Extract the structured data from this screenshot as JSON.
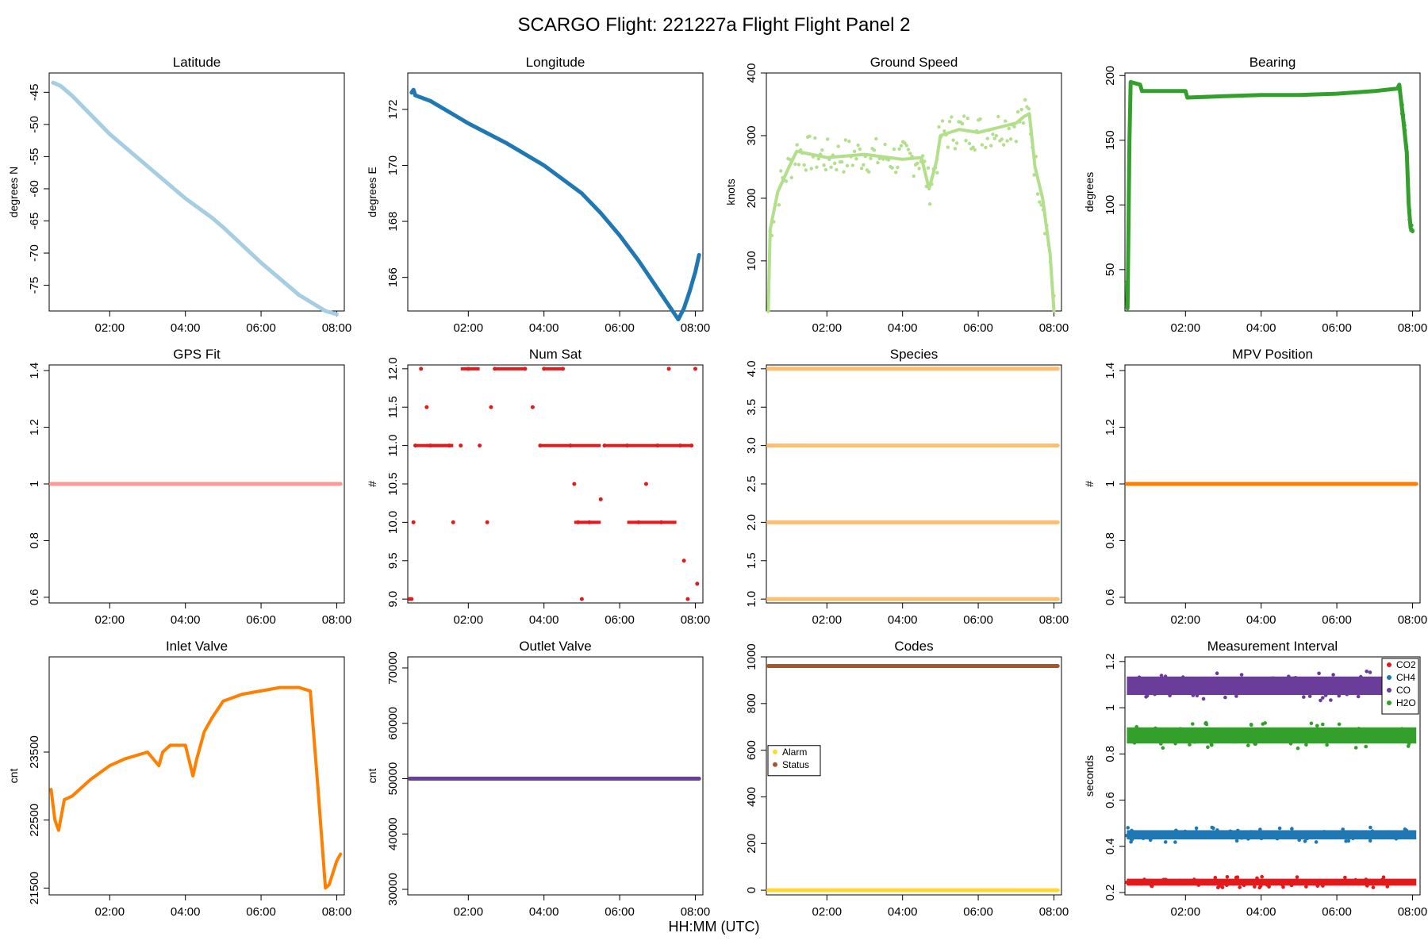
{
  "page": {
    "title": "SCARGO Flight: 221227a  Flight Flight  Panel 2",
    "xlabel": "HH:MM (UTC)"
  },
  "chart_data": [
    {
      "id": "latitude",
      "type": "scatter",
      "title": "Latitude",
      "ylabel": "degrees N",
      "color": "#a6cee3",
      "xlim": [
        0.4,
        8.2
      ],
      "ylim": [
        -79,
        -42
      ],
      "yticks": [
        -45,
        -50,
        -55,
        -60,
        -65,
        -70,
        -75
      ],
      "xticks": [
        "02:00",
        "04:00",
        "06:00",
        "08:00"
      ],
      "points": [
        [
          0.5,
          -43.5
        ],
        [
          0.7,
          -44
        ],
        [
          1.0,
          -45.5
        ],
        [
          2.0,
          -51.5
        ],
        [
          3.0,
          -56.5
        ],
        [
          4.0,
          -61.5
        ],
        [
          4.7,
          -64.5
        ],
        [
          5.0,
          -66
        ],
        [
          6.0,
          -71.5
        ],
        [
          7.0,
          -76.5
        ],
        [
          7.7,
          -79
        ],
        [
          8.0,
          -79.5
        ]
      ]
    },
    {
      "id": "longitude",
      "type": "scatter",
      "title": "Longitude",
      "ylabel": "degrees E",
      "color": "#1f78b4",
      "xlim": [
        0.4,
        8.2
      ],
      "ylim": [
        164.8,
        173.3
      ],
      "yticks": [
        166,
        168,
        170,
        172
      ],
      "xticks": [
        "02:00",
        "04:00",
        "06:00",
        "08:00"
      ],
      "points": [
        [
          0.5,
          172.6
        ],
        [
          0.55,
          172.7
        ],
        [
          0.6,
          172.5
        ],
        [
          1.0,
          172.3
        ],
        [
          1.5,
          171.9
        ],
        [
          2.0,
          171.5
        ],
        [
          3.0,
          170.8
        ],
        [
          4.0,
          170.0
        ],
        [
          5.0,
          169.0
        ],
        [
          5.5,
          168.3
        ],
        [
          6.0,
          167.5
        ],
        [
          6.5,
          166.6
        ],
        [
          7.0,
          165.6
        ],
        [
          7.4,
          164.8
        ],
        [
          7.55,
          164.5
        ],
        [
          7.7,
          164.9
        ],
        [
          7.85,
          165.5
        ],
        [
          8.0,
          166.2
        ],
        [
          8.1,
          166.8
        ]
      ]
    },
    {
      "id": "ground-speed",
      "type": "scatter",
      "title": "Ground Speed",
      "ylabel": "knots",
      "color": "#b2df8a",
      "xlim": [
        0.4,
        8.2
      ],
      "ylim": [
        20,
        400
      ],
      "yticks": [
        100,
        200,
        300,
        400
      ],
      "xticks": [
        "02:00",
        "04:00",
        "06:00",
        "08:00"
      ],
      "points": [
        [
          0.45,
          20
        ],
        [
          0.5,
          150
        ],
        [
          0.7,
          210
        ],
        [
          1.0,
          250
        ],
        [
          1.2,
          275
        ],
        [
          2.0,
          265
        ],
        [
          3.0,
          270
        ],
        [
          4.0,
          262
        ],
        [
          4.5,
          265
        ],
        [
          4.7,
          215
        ],
        [
          4.9,
          260
        ],
        [
          5.0,
          300
        ],
        [
          5.5,
          310
        ],
        [
          6.0,
          305
        ],
        [
          7.0,
          320
        ],
        [
          7.2,
          330
        ],
        [
          7.35,
          335
        ],
        [
          7.5,
          250
        ],
        [
          7.7,
          200
        ],
        [
          7.9,
          110
        ],
        [
          8.0,
          20
        ]
      ]
    },
    {
      "id": "bearing",
      "type": "scatter",
      "title": "Bearing",
      "ylabel": "degrees",
      "color": "#33a02c",
      "xlim": [
        0.4,
        8.2
      ],
      "ylim": [
        18,
        202
      ],
      "yticks": [
        50,
        100,
        150,
        200
      ],
      "xticks": [
        "02:00",
        "04:00",
        "06:00",
        "08:00"
      ],
      "points": [
        [
          0.45,
          40
        ],
        [
          0.47,
          20
        ],
        [
          0.52,
          150
        ],
        [
          0.55,
          195
        ],
        [
          0.8,
          193
        ],
        [
          0.85,
          188
        ],
        [
          1.5,
          188
        ],
        [
          2.0,
          188
        ],
        [
          2.05,
          183
        ],
        [
          3.0,
          184
        ],
        [
          4.0,
          185
        ],
        [
          5.0,
          185
        ],
        [
          6.0,
          186
        ],
        [
          7.0,
          188
        ],
        [
          7.6,
          190
        ],
        [
          7.65,
          193
        ],
        [
          7.7,
          180
        ],
        [
          7.75,
          168
        ],
        [
          7.85,
          140
        ],
        [
          7.9,
          100
        ],
        [
          7.95,
          82
        ],
        [
          8.0,
          80
        ]
      ]
    },
    {
      "id": "gps-fit",
      "type": "scatter",
      "title": "GPS Fit",
      "ylabel": "",
      "color": "#fb9a99",
      "xlim": [
        0.4,
        8.2
      ],
      "ylim": [
        0.58,
        1.42
      ],
      "yticks": [
        0.6,
        0.8,
        1.0,
        1.2,
        1.4
      ],
      "xticks": [
        "02:00",
        "04:00",
        "06:00",
        "08:00"
      ],
      "points": [
        [
          0.45,
          1.0
        ],
        [
          8.1,
          1.0
        ]
      ]
    },
    {
      "id": "num-sat",
      "type": "scatter",
      "title": "Num Sat",
      "ylabel": "#",
      "color": "#e31a1c",
      "xlim": [
        0.4,
        8.2
      ],
      "ylim": [
        8.95,
        12.05
      ],
      "yticks": [
        9.0,
        9.5,
        10.0,
        10.5,
        11.0,
        11.5,
        12.0
      ],
      "xticks": [
        "02:00",
        "04:00",
        "06:00",
        "08:00"
      ],
      "points": [
        [
          0.45,
          9.0
        ],
        [
          0.5,
          9.0
        ],
        [
          0.55,
          10.0
        ],
        [
          0.6,
          11.0
        ],
        [
          0.75,
          12.0
        ],
        [
          0.9,
          11.5
        ],
        [
          1.0,
          11.0
        ],
        [
          1.5,
          11.0
        ],
        [
          1.6,
          10.0
        ],
        [
          1.8,
          11.0
        ],
        [
          2.0,
          12.0
        ],
        [
          2.3,
          11.0
        ],
        [
          2.5,
          10.0
        ],
        [
          2.6,
          11.5
        ],
        [
          2.7,
          12.0
        ],
        [
          3.5,
          12.0
        ],
        [
          3.7,
          11.5
        ],
        [
          3.9,
          11.0
        ],
        [
          4.0,
          12.0
        ],
        [
          4.5,
          12.0
        ],
        [
          4.7,
          11.0
        ],
        [
          4.8,
          10.5
        ],
        [
          4.9,
          10.0
        ],
        [
          5.0,
          9.0
        ],
        [
          5.2,
          10.0
        ],
        [
          5.5,
          10.3
        ],
        [
          5.6,
          11.0
        ],
        [
          6.2,
          11.0
        ],
        [
          6.5,
          10.0
        ],
        [
          6.7,
          10.5
        ],
        [
          7.0,
          11.0
        ],
        [
          7.1,
          10.0
        ],
        [
          7.3,
          12.0
        ],
        [
          7.6,
          11.0
        ],
        [
          7.7,
          9.5
        ],
        [
          7.8,
          9.0
        ],
        [
          7.9,
          11.0
        ],
        [
          8.0,
          12.0
        ],
        [
          8.05,
          9.2
        ]
      ]
    },
    {
      "id": "species",
      "type": "scatter",
      "title": "Species",
      "ylabel": "",
      "color": "#fdbf6f",
      "xlim": [
        0.4,
        8.2
      ],
      "ylim": [
        0.95,
        4.05
      ],
      "yticks": [
        1.0,
        1.5,
        2.0,
        2.5,
        3.0,
        3.5,
        4.0
      ],
      "xticks": [
        "02:00",
        "04:00",
        "06:00",
        "08:00"
      ],
      "series": [
        {
          "name": "1",
          "points": [
            [
              0.45,
              1.0
            ],
            [
              8.1,
              1.0
            ]
          ]
        },
        {
          "name": "2",
          "points": [
            [
              0.45,
              2.0
            ],
            [
              8.1,
              2.0
            ]
          ]
        },
        {
          "name": "3",
          "points": [
            [
              0.45,
              3.0
            ],
            [
              8.1,
              3.0
            ]
          ]
        },
        {
          "name": "4",
          "points": [
            [
              0.45,
              4.0
            ],
            [
              8.1,
              4.0
            ]
          ]
        }
      ]
    },
    {
      "id": "mpv-position",
      "type": "scatter",
      "title": "MPV Position",
      "ylabel": "#",
      "color": "#ff7f00",
      "xlim": [
        0.4,
        8.2
      ],
      "ylim": [
        0.58,
        1.42
      ],
      "yticks": [
        0.6,
        0.8,
        1.0,
        1.2,
        1.4
      ],
      "xticks": [
        "02:00",
        "04:00",
        "06:00",
        "08:00"
      ],
      "points": [
        [
          0.45,
          1.0
        ],
        [
          8.1,
          1.0
        ]
      ]
    },
    {
      "id": "inlet-valve",
      "type": "line",
      "title": "Inlet Valve",
      "ylabel": "cnt",
      "color": "#ff7f00",
      "xlim": [
        0.4,
        8.2
      ],
      "ylim": [
        21400,
        24900
      ],
      "yticks": [
        21500,
        22500,
        23500
      ],
      "xticks": [
        "02:00",
        "04:00",
        "06:00",
        "08:00"
      ],
      "points": [
        [
          0.45,
          22950
        ],
        [
          0.55,
          22500
        ],
        [
          0.65,
          22350
        ],
        [
          0.8,
          22800
        ],
        [
          1.0,
          22850
        ],
        [
          1.5,
          23100
        ],
        [
          2.0,
          23300
        ],
        [
          2.4,
          23400
        ],
        [
          3.0,
          23500
        ],
        [
          3.3,
          23300
        ],
        [
          3.4,
          23500
        ],
        [
          3.6,
          23600
        ],
        [
          4.0,
          23600
        ],
        [
          4.2,
          23150
        ],
        [
          4.3,
          23400
        ],
        [
          4.5,
          23800
        ],
        [
          4.7,
          24000
        ],
        [
          5.0,
          24250
        ],
        [
          5.5,
          24350
        ],
        [
          6.0,
          24400
        ],
        [
          6.5,
          24450
        ],
        [
          7.0,
          24450
        ],
        [
          7.3,
          24400
        ],
        [
          7.5,
          23000
        ],
        [
          7.7,
          21500
        ],
        [
          7.8,
          21550
        ],
        [
          8.0,
          21900
        ],
        [
          8.1,
          22000
        ]
      ]
    },
    {
      "id": "outlet-valve",
      "type": "scatter",
      "title": "Outlet Valve",
      "ylabel": "cnt",
      "color": "#6a3d9a",
      "xlim": [
        0.4,
        8.2
      ],
      "ylim": [
        29000,
        72000
      ],
      "yticks": [
        30000,
        40000,
        50000,
        60000,
        70000
      ],
      "xticks": [
        "02:00",
        "04:00",
        "06:00",
        "08:00"
      ],
      "points": [
        [
          0.45,
          50000
        ],
        [
          8.1,
          50000
        ]
      ]
    },
    {
      "id": "codes",
      "type": "scatter",
      "title": "Codes",
      "ylabel": "",
      "color": "#b15928",
      "xlim": [
        0.4,
        8.2
      ],
      "ylim": [
        -20,
        1000
      ],
      "yticks": [
        0,
        200,
        400,
        600,
        800,
        1000
      ],
      "xticks": [
        "02:00",
        "04:00",
        "06:00",
        "08:00"
      ],
      "legend": {
        "entries": [
          "Alarm",
          "Status"
        ],
        "colors": [
          "#ffd92f",
          "#a6562d"
        ]
      },
      "series": [
        {
          "name": "Alarm",
          "color": "#ffd92f",
          "points": [
            [
              0.45,
              0
            ],
            [
              8.1,
              0
            ]
          ]
        },
        {
          "name": "Status",
          "color": "#a6562d",
          "points": [
            [
              0.45,
              961
            ],
            [
              8.1,
              961
            ]
          ]
        }
      ]
    },
    {
      "id": "measurement-interval",
      "type": "scatter",
      "title": "Measurement Interval",
      "ylabel": "seconds",
      "color": "#6a3d9a",
      "xlim": [
        0.4,
        8.2
      ],
      "ylim": [
        0.19,
        1.22
      ],
      "yticks": [
        0.2,
        0.4,
        0.6,
        0.8,
        1.0,
        1.2
      ],
      "xticks": [
        "02:00",
        "04:00",
        "06:00",
        "08:00"
      ],
      "legend": {
        "entries": [
          "CO2",
          "CH4",
          "CO",
          "H2O"
        ],
        "colors": [
          "#e31a1c",
          "#1f78b4",
          "#6a3d9a",
          "#33a02c"
        ]
      },
      "series": [
        {
          "name": "CO2",
          "color": "#e31a1c",
          "center": 0.245,
          "spread": 0.03
        },
        {
          "name": "CH4",
          "color": "#1f78b4",
          "center": 0.45,
          "spread": 0.04
        },
        {
          "name": "CO",
          "color": "#6a3d9a",
          "center": 1.095,
          "spread": 0.08
        },
        {
          "name": "H2O",
          "color": "#33a02c",
          "center": 0.88,
          "spread": 0.07
        }
      ]
    }
  ]
}
